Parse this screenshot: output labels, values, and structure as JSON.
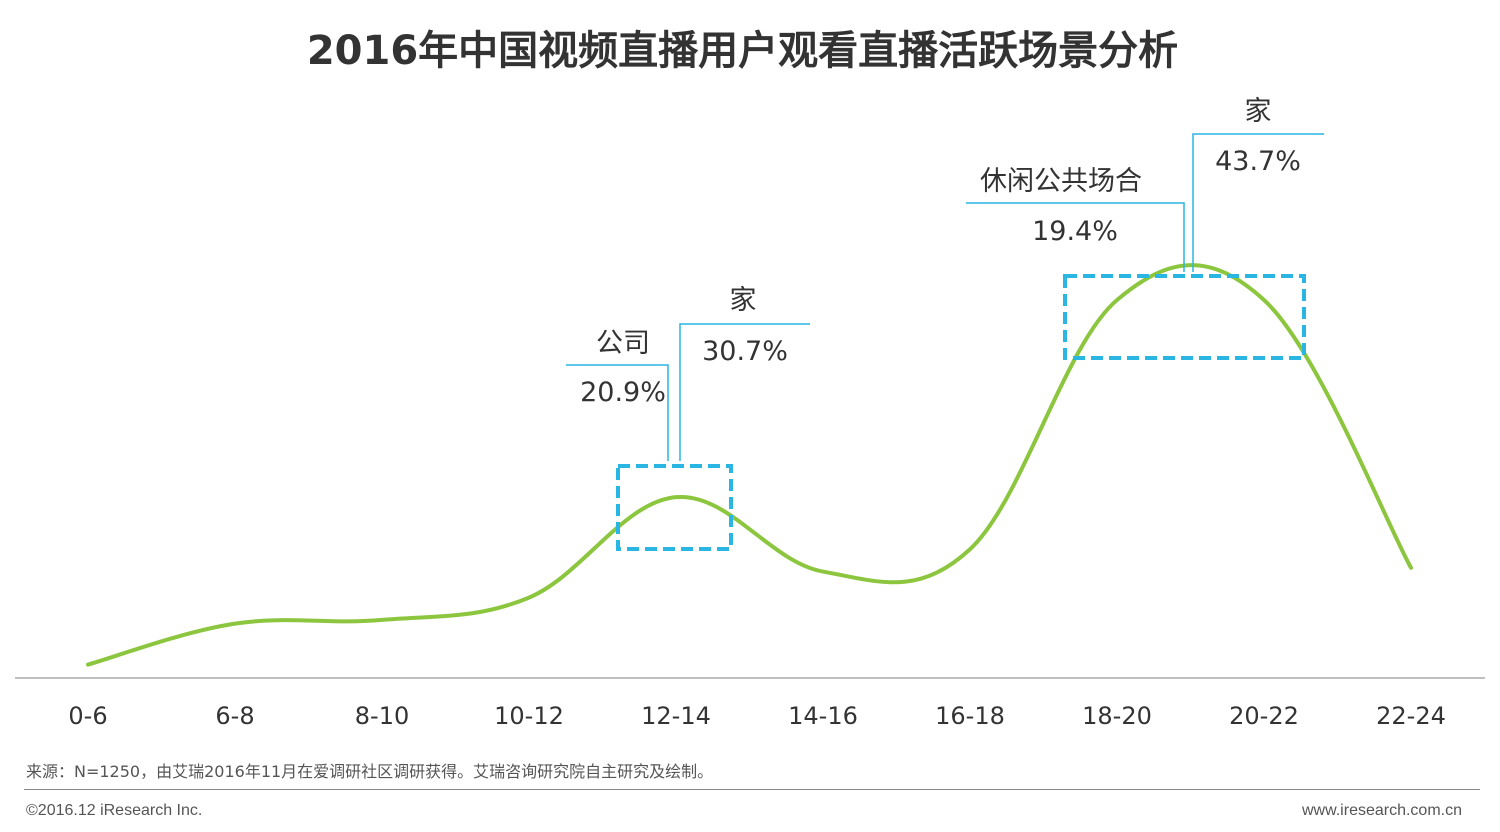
{
  "title": "2016年中国视频直播用户观看直播活跃场景分析",
  "colors": {
    "curve": "#8cc63f",
    "highlight_box": "#29b6e3",
    "callout_line": "#29b6e3",
    "axis": "#999999"
  },
  "chart_data": {
    "type": "line",
    "smooth": true,
    "categories": [
      "0-6",
      "6-8",
      "8-10",
      "10-12",
      "12-14",
      "14-16",
      "16-18",
      "18-20",
      "20-22",
      "22-24"
    ],
    "values": [
      2,
      13,
      14,
      20,
      47,
      27,
      33,
      100,
      100,
      28
    ],
    "y_axis_shown": false,
    "grid": false,
    "annotations": [
      {
        "label": "公司",
        "value": "20.9%",
        "period": "12-14"
      },
      {
        "label": "家",
        "value": "30.7%",
        "period": "12-14"
      },
      {
        "label": "休闲公共场合",
        "value": "19.4%",
        "period": "20-22"
      },
      {
        "label": "家",
        "value": "43.7%",
        "period": "20-22"
      }
    ]
  },
  "source": "来源：N=1250，由艾瑞2016年11月在爱调研社区调研获得。艾瑞咨询研究院自主研究及绘制。",
  "copyright": "©2016.12 iResearch Inc.",
  "website": "www.iresearch.com.cn"
}
